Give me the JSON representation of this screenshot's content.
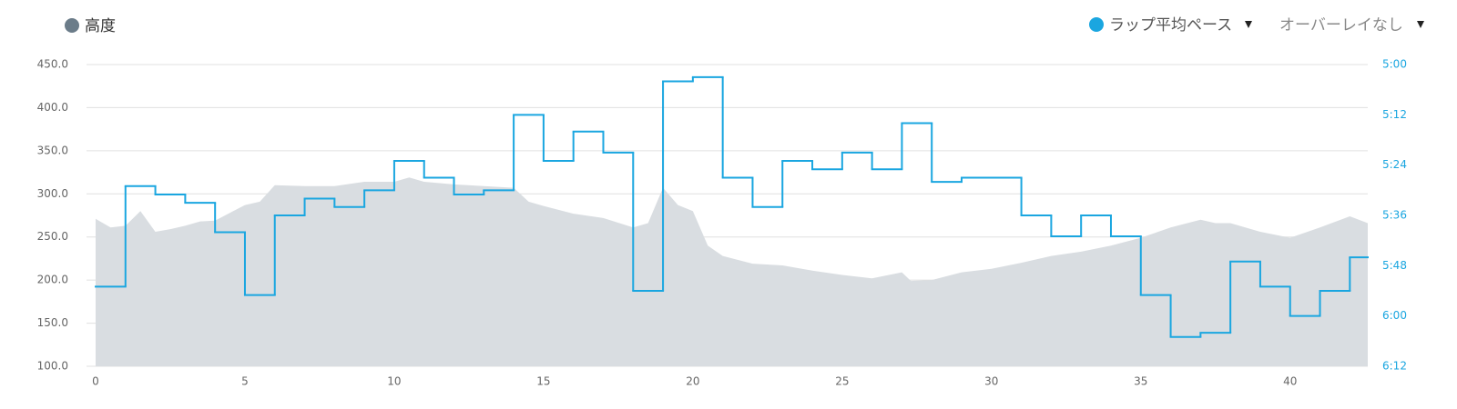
{
  "chart_data": {
    "type": "area-step",
    "legend": "top",
    "grid": true,
    "controls": [
      "オーバーレイなし"
    ],
    "xlim": [
      0,
      42.6
    ],
    "xticks": [
      0,
      5,
      10,
      15,
      20,
      25,
      30,
      35,
      40
    ],
    "ylim": [
      100,
      450
    ],
    "yticks": [
      {
        "value": 100,
        "label": "100.0"
      },
      {
        "value": 150,
        "label": "150.0"
      },
      {
        "value": 200,
        "label": "200.0"
      },
      {
        "value": 250,
        "label": "250.0"
      },
      {
        "value": 300,
        "label": "300.0"
      },
      {
        "value": 350,
        "label": "350.0"
      },
      {
        "value": 400,
        "label": "400.0"
      },
      {
        "value": 450,
        "label": "450.0"
      }
    ],
    "y2lim": [
      372,
      300
    ],
    "y2ticks": [
      {
        "value": 300,
        "label": "5:00"
      },
      {
        "value": 312,
        "label": "5:12"
      },
      {
        "value": 324,
        "label": "5:24"
      },
      {
        "value": 336,
        "label": "5:36"
      },
      {
        "value": 348,
        "label": "5:48"
      },
      {
        "value": 360,
        "label": "6:00"
      },
      {
        "value": 372,
        "label": "6:12"
      }
    ],
    "series": [
      {
        "name": "高度",
        "type": "area",
        "color": "#d9dde1",
        "legend_color": "#6b7c89",
        "x": [
          0,
          0.5,
          1,
          1.5,
          2,
          2.5,
          3,
          3.5,
          4,
          5,
          5.5,
          6,
          7,
          8,
          9,
          10,
          10.5,
          11,
          12,
          13,
          14,
          14.5,
          15,
          16,
          17,
          18,
          18.5,
          19,
          19.5,
          20,
          20.5,
          21,
          22,
          23,
          24,
          25,
          26,
          27,
          27.3,
          28,
          29,
          30,
          31,
          32,
          33,
          34,
          35,
          36,
          37,
          37.5,
          38,
          39,
          40,
          41,
          42,
          42.6
        ],
        "values": [
          271,
          261,
          263,
          280,
          256,
          259,
          263,
          268,
          269,
          287,
          291,
          310,
          309,
          309,
          314,
          314,
          319,
          314,
          311,
          309,
          307,
          291,
          286,
          277,
          272,
          261,
          266,
          307,
          287,
          280,
          240,
          228,
          219,
          217,
          211,
          206,
          202,
          209,
          199,
          200,
          209,
          213,
          220,
          228,
          233,
          240,
          249,
          261,
          270,
          266,
          266,
          256,
          249,
          261,
          274,
          266
        ]
      },
      {
        "name": "ラップ平均ペース",
        "type": "step",
        "axis": "y2",
        "color": "#1aa6e0",
        "x": [
          0,
          1,
          2,
          3,
          4,
          5,
          6,
          7,
          8,
          9,
          10,
          11,
          12,
          13,
          14,
          15,
          16,
          17,
          18,
          19,
          20,
          21,
          22,
          23,
          24,
          25,
          26,
          27,
          28,
          29,
          30,
          31,
          32,
          33,
          34,
          35,
          36,
          37,
          38,
          39,
          40,
          41,
          42
        ],
        "values": [
          353,
          329,
          331,
          333,
          340,
          355,
          336,
          332,
          334,
          330,
          323,
          327,
          331,
          330,
          312,
          323,
          316,
          321,
          354,
          304,
          303,
          327,
          334,
          323,
          325,
          321,
          325,
          314,
          328,
          327,
          327,
          336,
          341,
          336,
          341,
          355,
          365,
          364,
          347,
          353,
          360,
          354,
          346
        ]
      }
    ]
  }
}
